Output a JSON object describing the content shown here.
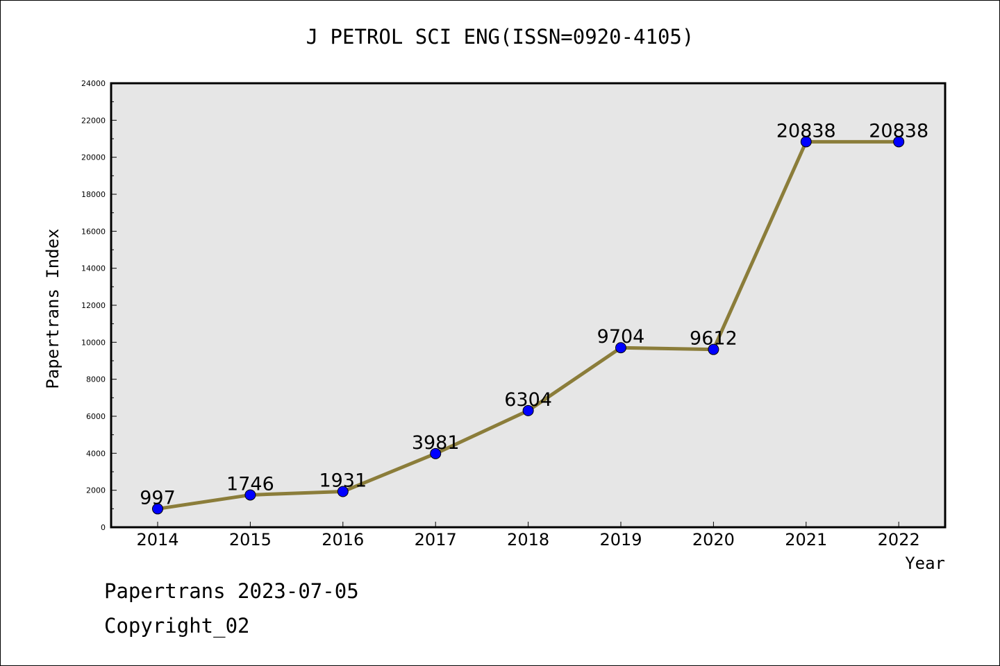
{
  "chart_data": {
    "type": "line",
    "title": "J PETROL SCI ENG(ISSN=0920-4105)",
    "xlabel": "Year",
    "ylabel": "Papertrans Index",
    "x": [
      "2014",
      "2015",
      "2016",
      "2017",
      "2018",
      "2019",
      "2020",
      "2021",
      "2022"
    ],
    "series": [
      {
        "values": [
          997,
          1746,
          1931,
          3981,
          6304,
          9704,
          9612,
          20838,
          20838
        ],
        "data_labels": [
          "997",
          "1746",
          "1931",
          "3981",
          "6304",
          "9704",
          "9612",
          "20838",
          "20838"
        ]
      }
    ],
    "ylim": [
      0,
      24000
    ],
    "yticks": [
      0,
      2000,
      4000,
      6000,
      8000,
      10000,
      12000,
      14000,
      16000,
      18000,
      20000,
      22000,
      24000
    ],
    "grid": false,
    "colors": {
      "line": "#8B7D3A",
      "marker": "#0000FF",
      "marker_edge": "#000000",
      "plot_bg": "#E6E6E6"
    }
  },
  "footer": {
    "date_text": "Papertrans 2023-07-05",
    "copyright_text": "Copyright_02"
  }
}
